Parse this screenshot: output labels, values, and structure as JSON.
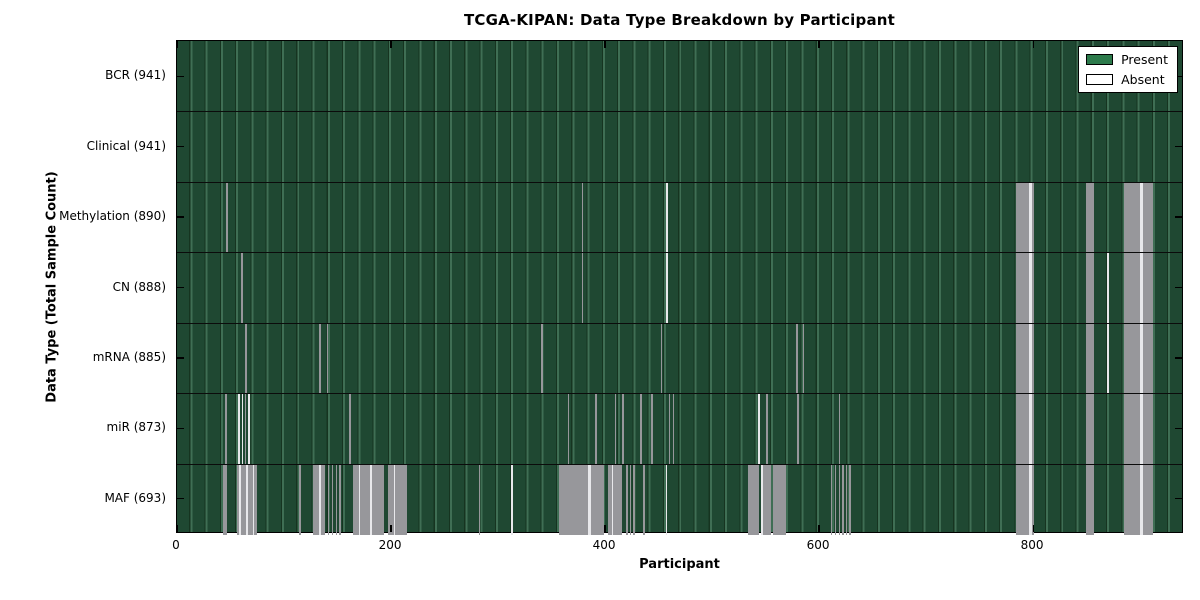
{
  "colors": {
    "present_fill": "#1f4832",
    "grid_light": "#3f6e54",
    "grid_dark": "#163420",
    "absent_gray": "#97979b",
    "absent_white": "#e8e8eb",
    "axis": "#000000"
  },
  "chart_data": {
    "type": "heatmap",
    "title": "TCGA-KIPAN: Data Type Breakdown by Participant",
    "xlabel": "Participant",
    "ylabel": "Data Type (Total Sample Count)",
    "x_ticks": [
      0,
      200,
      400,
      600,
      800
    ],
    "x_range": [
      0,
      941
    ],
    "n_participants": 941,
    "grid": "light-green vertical column lines on dark green",
    "legend_position": "upper right",
    "legend": [
      {
        "label": "Present",
        "color": "#2c7a4b"
      },
      {
        "label": "Absent",
        "color": "#ffffff"
      }
    ],
    "rows": [
      {
        "label": "BCR (941)",
        "name": "bcr",
        "total": 941,
        "absent_ranges": []
      },
      {
        "label": "Clinical (941)",
        "name": "clinical",
        "total": 941,
        "absent_ranges": []
      },
      {
        "label": "Methylation (890)",
        "name": "methylation",
        "total": 890,
        "absent_ranges": [
          [
            46,
            48,
            "g"
          ],
          [
            379,
            380.5,
            "g"
          ],
          [
            458,
            459.5,
            "w"
          ],
          [
            786,
            802,
            "g"
          ],
          [
            798,
            800.5,
            "w"
          ],
          [
            851,
            859,
            "g"
          ],
          [
            887,
            914,
            "g"
          ],
          [
            901.5,
            904.5,
            "w"
          ]
        ]
      },
      {
        "label": "CN (888)",
        "name": "cn",
        "total": 888,
        "absent_ranges": [
          [
            59.5,
            61.5,
            "g"
          ],
          [
            379,
            380.5,
            "g"
          ],
          [
            458,
            459.5,
            "w"
          ],
          [
            871,
            872.5,
            "w"
          ],
          [
            786,
            802,
            "g"
          ],
          [
            798,
            800.5,
            "w"
          ],
          [
            851,
            859,
            "g"
          ],
          [
            887,
            914,
            "g"
          ],
          [
            901.5,
            904.5,
            "w"
          ]
        ]
      },
      {
        "label": "mRNA (885)",
        "name": "mrna",
        "total": 885,
        "absent_ranges": [
          [
            63.5,
            65.5,
            "g"
          ],
          [
            133,
            134.5,
            "g"
          ],
          [
            140,
            141.5,
            "g"
          ],
          [
            341,
            342.5,
            "g"
          ],
          [
            453,
            454.5,
            "g"
          ],
          [
            580,
            581.5,
            "g"
          ],
          [
            586,
            587.5,
            "g"
          ],
          [
            871,
            872.5,
            "w"
          ],
          [
            786,
            802,
            "g"
          ],
          [
            798,
            800.5,
            "w"
          ],
          [
            851,
            859,
            "g"
          ],
          [
            887,
            914,
            "g"
          ],
          [
            901.5,
            904.5,
            "w"
          ]
        ]
      },
      {
        "label": "miR (873)",
        "name": "mir",
        "total": 873,
        "absent_ranges": [
          [
            44.5,
            46.5,
            "g"
          ],
          [
            57.5,
            59,
            "w"
          ],
          [
            60.5,
            62,
            "w"
          ],
          [
            63.5,
            65,
            "g"
          ],
          [
            66.5,
            68,
            "w"
          ],
          [
            161.5,
            163,
            "g"
          ],
          [
            366,
            367.5,
            "g"
          ],
          [
            391.5,
            393,
            "g"
          ],
          [
            410,
            411.5,
            "g"
          ],
          [
            417,
            418.5,
            "g"
          ],
          [
            433.5,
            435,
            "g"
          ],
          [
            444,
            445.5,
            "g"
          ],
          [
            460.5,
            462,
            "g"
          ],
          [
            464,
            465.5,
            "g"
          ],
          [
            544,
            545.5,
            "w"
          ],
          [
            551.5,
            553,
            "g"
          ],
          [
            580.5,
            582,
            "g"
          ],
          [
            619.5,
            621,
            "g"
          ],
          [
            786,
            802,
            "g"
          ],
          [
            798,
            800.5,
            "w"
          ],
          [
            851,
            859,
            "g"
          ],
          [
            887,
            914,
            "g"
          ],
          [
            901.5,
            904.5,
            "w"
          ]
        ]
      },
      {
        "label": "MAF (693)",
        "name": "maf",
        "total": 693,
        "absent_ranges": [
          [
            43.5,
            47,
            "g"
          ],
          [
            56,
            75,
            "g"
          ],
          [
            58,
            59.5,
            "w"
          ],
          [
            65,
            66.5,
            "w"
          ],
          [
            71,
            72.5,
            "w"
          ],
          [
            114.5,
            116,
            "g"
          ],
          [
            127.5,
            139,
            "g"
          ],
          [
            133,
            134.5,
            "w"
          ],
          [
            141,
            142.5,
            "g"
          ],
          [
            145,
            146.5,
            "g"
          ],
          [
            148.5,
            150,
            "g"
          ],
          [
            152,
            153.5,
            "g"
          ],
          [
            165,
            194,
            "g"
          ],
          [
            170,
            171.5,
            "w"
          ],
          [
            181,
            182.5,
            "w"
          ],
          [
            197.5,
            215,
            "g"
          ],
          [
            203,
            204.5,
            "w"
          ],
          [
            282.5,
            284,
            "g"
          ],
          [
            313,
            314.5,
            "w"
          ],
          [
            357.5,
            400,
            "g"
          ],
          [
            385,
            387.5,
            "w"
          ],
          [
            403.5,
            417,
            "g"
          ],
          [
            407,
            408.5,
            "w"
          ],
          [
            420.5,
            422,
            "g"
          ],
          [
            424,
            425.5,
            "g"
          ],
          [
            427,
            428.5,
            "g"
          ],
          [
            436.5,
            438,
            "g"
          ],
          [
            457.5,
            459,
            "w"
          ],
          [
            535,
            545,
            "g"
          ],
          [
            546.5,
            556,
            "g"
          ],
          [
            547,
            548.5,
            "w"
          ],
          [
            558,
            570,
            "g"
          ],
          [
            612,
            613.5,
            "g"
          ],
          [
            616,
            617.5,
            "g"
          ],
          [
            619.5,
            621,
            "g"
          ],
          [
            623,
            624.5,
            "g"
          ],
          [
            626,
            627.5,
            "g"
          ],
          [
            629.5,
            631,
            "g"
          ],
          [
            786,
            802,
            "g"
          ],
          [
            798,
            800.5,
            "w"
          ],
          [
            851,
            859,
            "g"
          ],
          [
            887,
            914,
            "g"
          ],
          [
            901.5,
            904.5,
            "w"
          ]
        ]
      }
    ]
  }
}
